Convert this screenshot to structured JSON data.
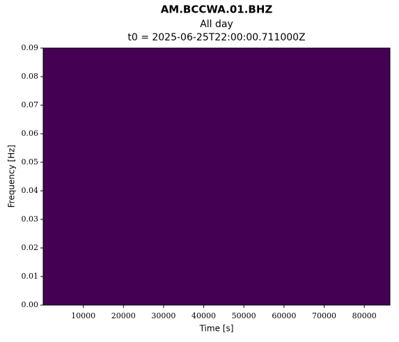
{
  "chart_data": {
    "type": "spectrogram",
    "title": "AM.BCCWA.01.BHZ",
    "subtitle": "All day",
    "subtitle2": "t0 = 2025-06-25T22:00:00.711000Z",
    "x_label": "Time [s]",
    "y_label": "Frequency [Hz]",
    "background_color": "#440154",
    "xlim": [
      0,
      86400
    ],
    "xticks": [
      10000,
      20000,
      30000,
      40000,
      50000,
      60000,
      70000,
      80000
    ],
    "ylim": [
      0,
      0.09
    ],
    "yticks": [
      {
        "value": 0,
        "label": "0.00"
      },
      0.01,
      0.02,
      0.03,
      0.04,
      0.05,
      0.06,
      0.07,
      0.08,
      0.09
    ]
  }
}
